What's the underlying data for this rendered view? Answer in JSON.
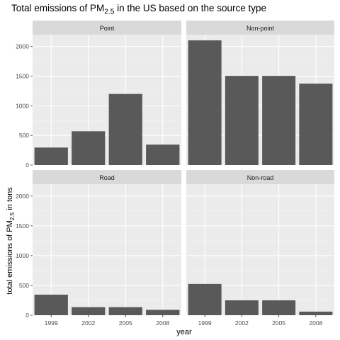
{
  "chart_data": {
    "type": "bar",
    "title": {
      "prefix": "Total emissions of PM",
      "sub": "2.5",
      "suffix": " in the US based on the source type"
    },
    "xlabel": "year",
    "ylabel": {
      "prefix": "total emissions of PM",
      "sub": "2.5",
      "suffix": " in tons"
    },
    "categories": [
      "1999",
      "2002",
      "2005",
      "2008"
    ],
    "ylim": [
      0,
      2200
    ],
    "yticks": [
      0,
      500,
      1000,
      1500,
      2000
    ],
    "grid": true,
    "bar_color": "#595959",
    "panel_background": "#ebebeb",
    "strip_background": "#d9d9d9",
    "facets": [
      {
        "name": "Point",
        "values": [
          295,
          570,
          1200,
          345
        ]
      },
      {
        "name": "Non-point",
        "values": [
          2105,
          1505,
          1505,
          1375
        ]
      },
      {
        "name": "Road",
        "values": [
          345,
          135,
          135,
          90
        ]
      },
      {
        "name": "Non-road",
        "values": [
          525,
          250,
          250,
          60
        ]
      }
    ]
  }
}
